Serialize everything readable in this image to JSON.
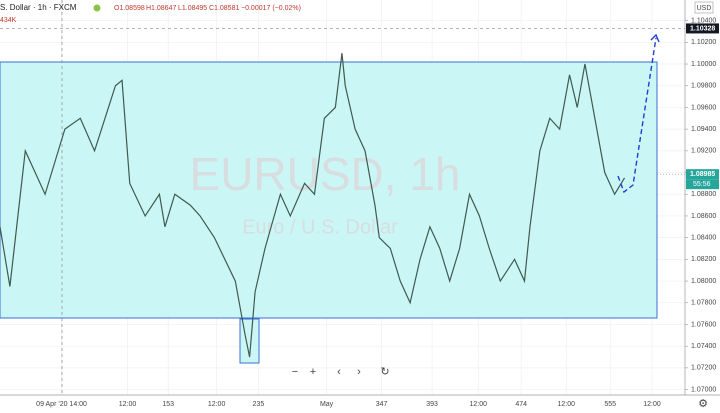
{
  "header": {
    "symbol": "S. Dollar · 1h · FXCM",
    "ohlc": [
      "O1.08598",
      "H1.08647",
      "L1.08495",
      "C1.08581",
      "−0.00017 (−0.02%)"
    ],
    "volume": "434K",
    "currency": "USD"
  },
  "watermark": {
    "main": "EURUSD, 1h",
    "sub": "Euro / U.S. Dollar"
  },
  "countdown": "55:56",
  "chart_data": {
    "type": "line",
    "color": "#3f5a4e",
    "x": [
      0,
      9,
      23,
      41,
      59,
      73,
      86,
      105,
      111,
      118,
      132,
      145,
      150,
      159,
      173,
      182,
      195,
      214,
      223,
      227,
      232,
      241,
      255,
      264,
      277,
      286,
      295,
      305,
      311,
      314,
      323,
      332,
      341,
      345,
      355,
      364,
      373,
      382,
      391,
      400,
      409,
      418,
      427,
      436,
      445,
      455,
      468,
      477,
      482,
      491,
      500,
      509,
      518,
      525,
      532,
      541,
      550,
      559,
      568
    ],
    "values": [
      1.085,
      1.0795,
      1.092,
      1.088,
      1.094,
      1.095,
      1.092,
      1.098,
      1.0985,
      1.089,
      1.086,
      1.088,
      1.085,
      1.088,
      1.087,
      1.086,
      1.084,
      1.08,
      1.075,
      1.073,
      1.079,
      1.083,
      1.088,
      1.086,
      1.089,
      1.088,
      1.095,
      1.096,
      1.101,
      1.098,
      1.094,
      1.092,
      1.087,
      1.084,
      1.083,
      1.08,
      1.078,
      1.082,
      1.085,
      1.083,
      1.08,
      1.083,
      1.088,
      1.086,
      1.083,
      1.08,
      1.082,
      1.08,
      1.085,
      1.092,
      1.095,
      1.094,
      1.099,
      1.096,
      1.1,
      1.095,
      1.09,
      1.088,
      1.0895
    ],
    "xlim": [
      0,
      623
    ],
    "ylim": [
      1.0695,
      1.1059
    ],
    "xticks": [
      {
        "value": 56,
        "label": "09 Apr '20  14:00"
      },
      {
        "value": 116,
        "label": "12:00"
      },
      153,
      {
        "value": 197,
        "label": "12:00"
      },
      235,
      {
        "value": 297,
        "label": "May"
      },
      347,
      393,
      {
        "value": 435,
        "label": "12:00"
      },
      474,
      {
        "value": 515,
        "label": "12:00"
      },
      555,
      {
        "value": 593,
        "label": "12:00"
      }
    ],
    "yticks": [
      {
        "value": 1.104,
        "label": "1.10400"
      },
      {
        "value": 1.102,
        "label": "1.10200"
      },
      {
        "value": 1.1,
        "label": "1.10000"
      },
      {
        "value": 1.098,
        "label": "1.09800"
      },
      {
        "value": 1.096,
        "label": "1.09600"
      },
      {
        "value": 1.094,
        "label": "1.09400"
      },
      {
        "value": 1.092,
        "label": "1.09200"
      },
      {
        "value": 1.09,
        "label": "1.09000"
      },
      {
        "value": 1.088,
        "label": "1.08800"
      },
      {
        "value": 1.086,
        "label": "1.08600"
      },
      {
        "value": 1.084,
        "label": "1.08400"
      },
      {
        "value": 1.082,
        "label": "1.08200"
      },
      {
        "value": 1.08,
        "label": "1.08000"
      },
      {
        "value": 1.078,
        "label": "1.07800"
      },
      {
        "value": 1.076,
        "label": "1.07600"
      },
      {
        "value": 1.074,
        "label": "1.07400"
      },
      {
        "value": 1.072,
        "label": "1.07200"
      },
      {
        "value": 1.07,
        "label": "1.07000"
      }
    ],
    "markers": [
      {
        "value": 1.10328,
        "label": "1.10328"
      },
      {
        "value": 1.08985,
        "label": "1.08985"
      }
    ],
    "grid": true
  }
}
